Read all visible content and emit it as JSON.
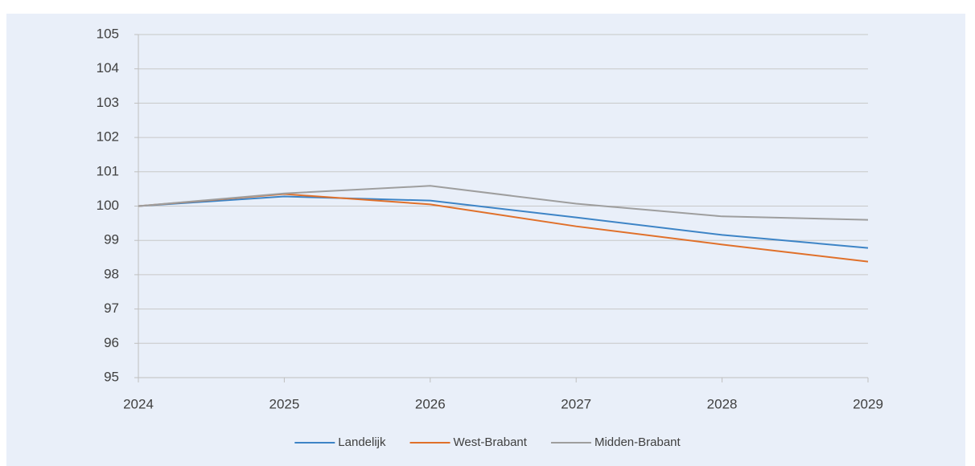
{
  "chart_data": {
    "type": "line",
    "x": [
      2024,
      2025,
      2026,
      2027,
      2028,
      2029
    ],
    "xlim": [
      2024,
      2029
    ],
    "xticks": [
      2024,
      2025,
      2026,
      2027,
      2028,
      2029
    ],
    "ylim": [
      95,
      105
    ],
    "yticks": [
      95,
      96,
      97,
      98,
      99,
      100,
      101,
      102,
      103,
      104,
      105
    ],
    "grid": true,
    "legend": "bottom",
    "series": [
      {
        "name": "Landelijk",
        "color": "#3d84c6",
        "values": [
          100,
          100.28,
          100.16,
          99.67,
          99.16,
          98.78
        ]
      },
      {
        "name": "West-Brabant",
        "color": "#e0702a",
        "values": [
          100,
          100.35,
          100.05,
          99.41,
          98.88,
          98.38
        ]
      },
      {
        "name": "Midden-Brabant",
        "color": "#9e9e9e",
        "values": [
          100,
          100.37,
          100.59,
          100.07,
          99.7,
          99.6
        ]
      }
    ]
  }
}
